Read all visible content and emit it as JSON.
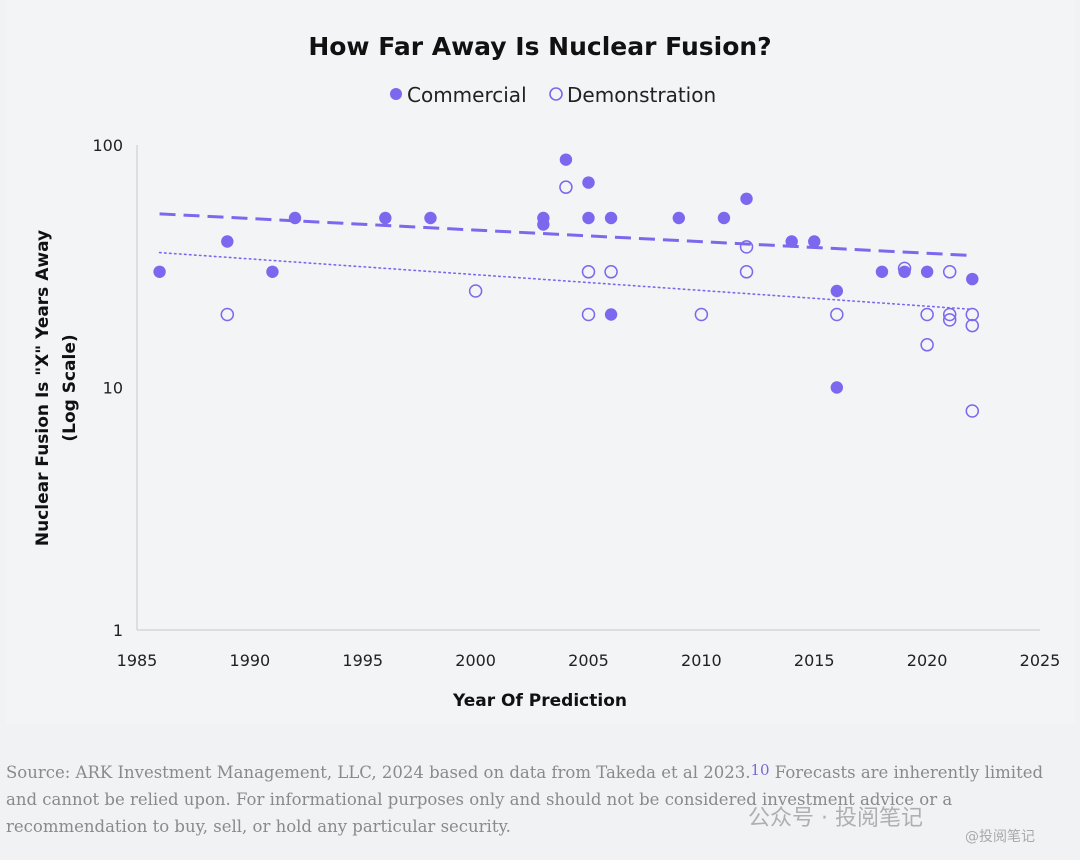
{
  "chart_data": {
    "type": "scatter",
    "title": "How Far Away Is Nuclear Fusion?",
    "xlabel": "Year Of Prediction",
    "ylabel_line1": "Nuclear Fusion Is \"X\" Years Away",
    "ylabel_line2": "(Log Scale)",
    "y_scale": "log",
    "xlim": [
      1985,
      2025
    ],
    "ylim": [
      1,
      100
    ],
    "x_ticks": [
      "1985",
      "1990",
      "1995",
      "2000",
      "2005",
      "2010",
      "2015",
      "2020",
      "2025"
    ],
    "y_ticks": [
      "100",
      "10",
      "1"
    ],
    "legend_position": "top-center",
    "grid": false,
    "colors": {
      "accent": "#7b68ee"
    },
    "series": [
      {
        "name": "Commercial",
        "marker": "filled-circle",
        "points": [
          [
            1986,
            30
          ],
          [
            1989,
            40
          ],
          [
            1991,
            30
          ],
          [
            1992,
            50
          ],
          [
            1996,
            50
          ],
          [
            1998,
            50
          ],
          [
            2003,
            50
          ],
          [
            2003,
            47
          ],
          [
            2004,
            87
          ],
          [
            2005,
            70
          ],
          [
            2005,
            50
          ],
          [
            2006,
            50
          ],
          [
            2006,
            20
          ],
          [
            2009,
            50
          ],
          [
            2011,
            50
          ],
          [
            2012,
            60
          ],
          [
            2014,
            40
          ],
          [
            2015,
            40
          ],
          [
            2016,
            25
          ],
          [
            2016,
            10
          ],
          [
            2018,
            30
          ],
          [
            2019,
            30
          ],
          [
            2020,
            30
          ],
          [
            2022,
            28
          ]
        ],
        "trend": {
          "style": "dashed",
          "from": [
            1986,
            52
          ],
          "to": [
            2022,
            35
          ]
        }
      },
      {
        "name": "Demonstration",
        "marker": "open-circle",
        "points": [
          [
            1989,
            20
          ],
          [
            2000,
            25
          ],
          [
            2004,
            67
          ],
          [
            2005,
            30
          ],
          [
            2005,
            20
          ],
          [
            2006,
            30
          ],
          [
            2010,
            20
          ],
          [
            2012,
            38
          ],
          [
            2012,
            30
          ],
          [
            2016,
            20
          ],
          [
            2019,
            31
          ],
          [
            2020,
            20
          ],
          [
            2020,
            15
          ],
          [
            2021,
            30
          ],
          [
            2021,
            20
          ],
          [
            2021,
            19
          ],
          [
            2022,
            20
          ],
          [
            2022,
            18
          ],
          [
            2022,
            8
          ]
        ],
        "trend": {
          "style": "dotted",
          "from": [
            1986,
            36
          ],
          "to": [
            2022,
            21
          ]
        }
      }
    ]
  },
  "caption": {
    "text_before": "Source: ARK Investment Management, LLC, 2024 based on data from Takeda et al 2023.",
    "footnote": "10",
    "text_after": " Forecasts are inherently limited and cannot be relied upon. For informational purposes only and should not be considered investment advice or a recommendation to buy, sell, or hold any particular security."
  },
  "watermark": {
    "line1": "公众号 · 投阅笔记",
    "line2": "@投阅笔记"
  }
}
